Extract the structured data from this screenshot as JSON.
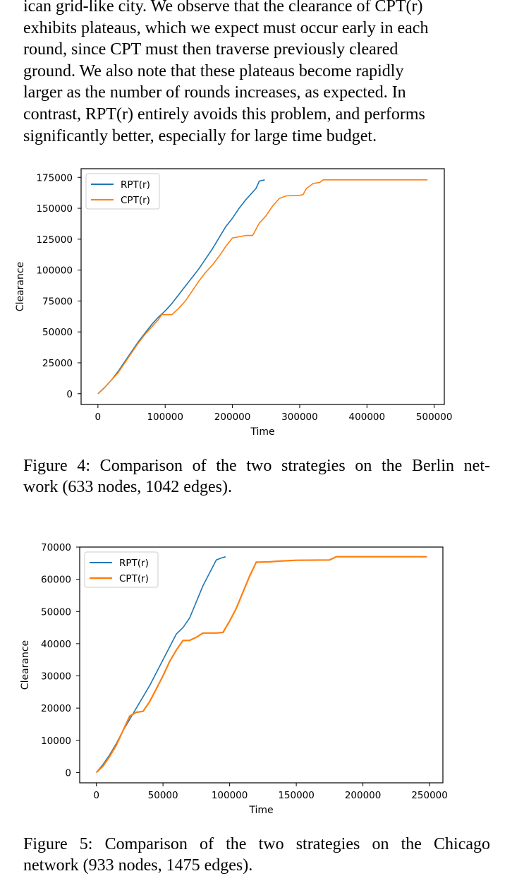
{
  "paragraph": {
    "lines": [
      "ican grid-like city. We observe that the clearance of CPT(r)",
      "exhibits plateaus, which we expect must occur early in each",
      "round, since CPT must then traverse previously cleared",
      "ground. We also note that these plateaus become rapidly",
      "larger as the number of rounds increases, as expected. In",
      "contrast, RPT(r) entirely avoids this problem, and performs",
      "significantly better, especially for large time budget."
    ]
  },
  "figure4": {
    "caption_lines": [
      "Figure 4: Comparison of the two strategies on the Berlin net-",
      "work (633 nodes, 1042 edges)."
    ]
  },
  "figure5": {
    "caption_lines": [
      "Figure 5: Comparison of the two strategies on the Chicago",
      "network (933 nodes, 1475 edges)."
    ]
  },
  "chart_data": [
    {
      "type": "line",
      "xlabel": "Time",
      "ylabel": "Clearance",
      "xlim": [
        -25000,
        515000
      ],
      "ylim": [
        -8700,
        182000
      ],
      "xticks": [
        0,
        100000,
        200000,
        300000,
        400000,
        500000
      ],
      "yticks": [
        0,
        25000,
        50000,
        75000,
        100000,
        125000,
        150000,
        175000
      ],
      "grid": false,
      "legend_position": "top-left",
      "colors": {
        "RPT(r)": "#1f77b4",
        "CPT(r)": "#ff7f0e"
      },
      "series": [
        {
          "name": "RPT(r)",
          "x": [
            0,
            10000,
            20000,
            30000,
            40000,
            50000,
            60000,
            70000,
            80000,
            90000,
            100000,
            110000,
            120000,
            130000,
            140000,
            150000,
            160000,
            170000,
            180000,
            190000,
            200000,
            210000,
            220000,
            230000,
            235000,
            240000,
            248000
          ],
          "y": [
            0,
            5000,
            11000,
            18000,
            26000,
            34000,
            42000,
            49000,
            56000,
            62000,
            67000,
            73000,
            80000,
            87000,
            94000,
            101000,
            109000,
            117000,
            126000,
            135000,
            142000,
            150000,
            157000,
            163000,
            166000,
            172000,
            173000
          ]
        },
        {
          "name": "CPT(r)",
          "x": [
            0,
            10000,
            20000,
            30000,
            40000,
            50000,
            60000,
            70000,
            80000,
            90000,
            95000,
            110000,
            120000,
            130000,
            140000,
            150000,
            160000,
            170000,
            180000,
            190000,
            200000,
            220000,
            230000,
            240000,
            250000,
            255000,
            260000,
            270000,
            280000,
            300000,
            305000,
            310000,
            320000,
            330000,
            335000,
            400000,
            490000
          ],
          "y": [
            0,
            5000,
            11000,
            17000,
            25000,
            33000,
            41000,
            48000,
            54000,
            60000,
            64000,
            64000,
            69000,
            75000,
            83000,
            91000,
            98000,
            104000,
            111000,
            119000,
            126000,
            128000,
            128000,
            138000,
            144000,
            148000,
            152000,
            158000,
            160000,
            160500,
            161000,
            166000,
            170000,
            171000,
            173000,
            173000,
            173000
          ]
        }
      ]
    },
    {
      "type": "line",
      "xlabel": "Time",
      "ylabel": "Clearance",
      "xlim": [
        -12500,
        260000
      ],
      "ylim": [
        -3200,
        70000
      ],
      "xticks": [
        0,
        50000,
        100000,
        150000,
        200000,
        250000
      ],
      "yticks": [
        0,
        10000,
        20000,
        30000,
        40000,
        50000,
        60000,
        70000
      ],
      "grid": false,
      "legend_position": "top-left",
      "colors": {
        "RPT(r)": "#1f77b4",
        "CPT(r)": "#ff7f0e"
      },
      "series": [
        {
          "name": "RPT(r)",
          "x": [
            0,
            5000,
            10000,
            15000,
            20000,
            25000,
            30000,
            35000,
            40000,
            45000,
            50000,
            55000,
            60000,
            65000,
            70000,
            75000,
            80000,
            85000,
            90000,
            93000,
            97000
          ],
          "y": [
            0,
            2500,
            5500,
            9000,
            13000,
            16500,
            20000,
            23500,
            27000,
            31000,
            35000,
            39000,
            43000,
            45000,
            48000,
            53000,
            58000,
            62000,
            66000,
            66500,
            67000
          ]
        },
        {
          "name": "CPT(r)",
          "x": [
            0,
            5000,
            10000,
            15000,
            20000,
            25000,
            30000,
            35000,
            40000,
            45000,
            50000,
            55000,
            60000,
            65000,
            70000,
            75000,
            80000,
            90000,
            95000,
            100000,
            105000,
            110000,
            115000,
            120000,
            130000,
            135000,
            150000,
            175000,
            180000,
            200000,
            248000
          ],
          "y": [
            0,
            2000,
            5000,
            8500,
            13000,
            17500,
            18700,
            19000,
            22000,
            26000,
            30000,
            34500,
            38000,
            41000,
            41000,
            42000,
            43300,
            43300,
            43500,
            47000,
            51000,
            56000,
            61000,
            65300,
            65400,
            65600,
            65900,
            66000,
            67000,
            67000,
            67000
          ]
        }
      ]
    }
  ]
}
